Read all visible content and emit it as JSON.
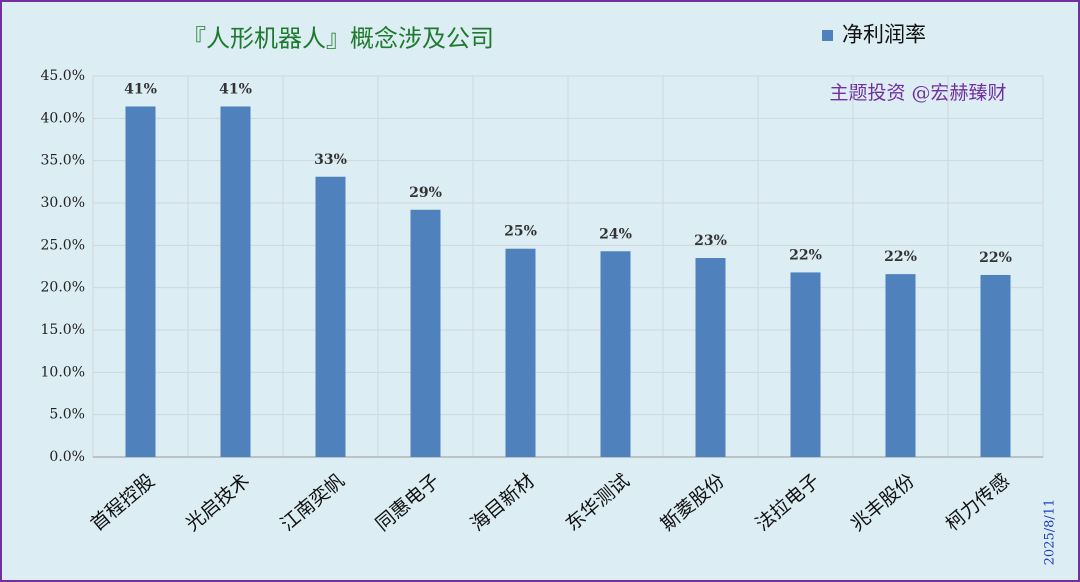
{
  "chart_data": {
    "type": "bar",
    "title": "『人形机器人』概念涉及公司",
    "annotation": "主题投资 @宏赫臻财",
    "date": "2025/8/11",
    "categories": [
      "首程控股",
      "光启技术",
      "江南奕帆",
      "同惠电子",
      "海目新材",
      "东华测试",
      "斯菱股份",
      "法拉电子",
      "兆丰股份",
      "柯力传感"
    ],
    "series": [
      {
        "name": "净利润率",
        "color": "#4f81bd",
        "values": [
          41.4,
          41.4,
          33.1,
          29.2,
          24.6,
          24.3,
          23.5,
          21.8,
          21.6,
          21.5
        ],
        "value_labels": [
          "41%",
          "41%",
          "33%",
          "29%",
          "25%",
          "24%",
          "23%",
          "22%",
          "22%",
          "22%"
        ]
      }
    ],
    "ylim": [
      0,
      45
    ],
    "yticks": [
      {
        "value": 0,
        "label": "0.0%"
      },
      {
        "value": 5,
        "label": "5.0%"
      },
      {
        "value": 10,
        "label": "10.0%"
      },
      {
        "value": 15,
        "label": "15.0%"
      },
      {
        "value": 20,
        "label": "20.0%"
      },
      {
        "value": 25,
        "label": "25.0%"
      },
      {
        "value": 30,
        "label": "30.0%"
      },
      {
        "value": 35,
        "label": "35.0%"
      },
      {
        "value": 40,
        "label": "40.0%"
      },
      {
        "value": 45,
        "label": "45.0%"
      }
    ],
    "grid": true,
    "legend": "top-right"
  }
}
